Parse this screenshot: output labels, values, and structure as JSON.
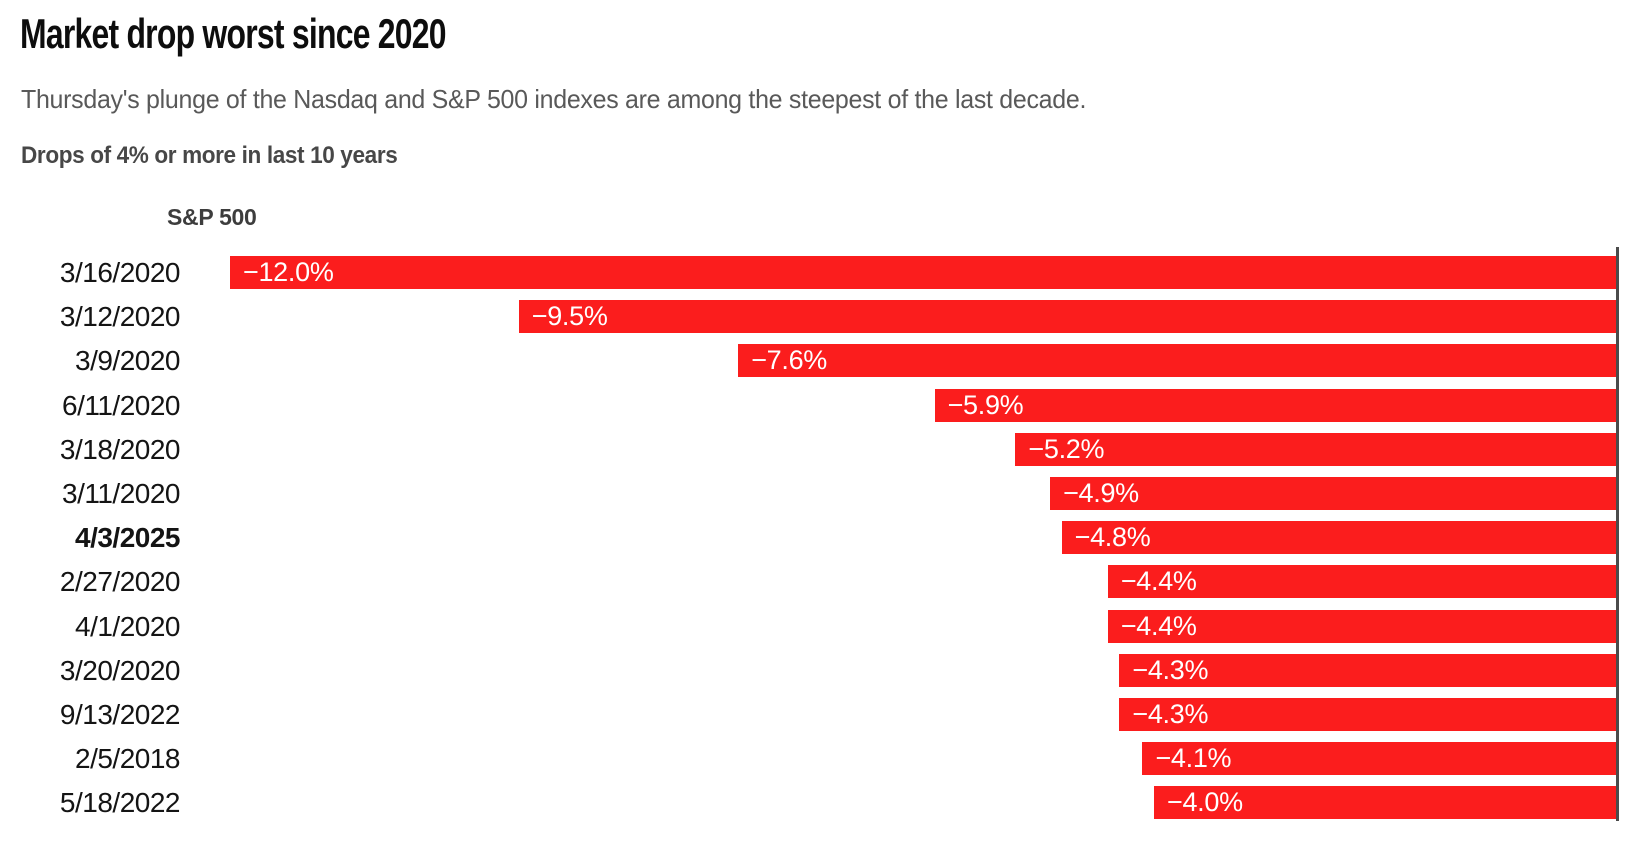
{
  "header": {
    "title": "Market drop worst since 2020",
    "subtitle": "Thursday's plunge of the Nasdaq and S&P 500 indexes are among the steepest of the last decade.",
    "section_label": "Drops of 4% or more in last 10 years"
  },
  "colors": {
    "bar_red": "#fb1d1d",
    "bar_value_text": "#ffffff",
    "axis_line": "#4b4b4b",
    "title_text": "#0d0d0d",
    "subtitle_text": "#595959",
    "date_text": "#141414"
  },
  "chart_data": {
    "type": "bar",
    "orientation": "horizontal",
    "series_label": "S&P 500",
    "title": "Drops of 4% or more in last 10 years",
    "x_max_abs": 12.0,
    "xlim": [
      -12.0,
      0
    ],
    "bars_anchored": "right",
    "grid": false,
    "legend_position": "none",
    "highlighted_category": "4/3/2025",
    "categories": [
      "3/16/2020",
      "3/12/2020",
      "3/9/2020",
      "6/11/2020",
      "3/18/2020",
      "3/11/2020",
      "4/3/2025",
      "2/27/2020",
      "4/1/2020",
      "3/20/2020",
      "9/13/2022",
      "2/5/2018",
      "5/18/2022"
    ],
    "values": [
      -12.0,
      -9.5,
      -7.6,
      -5.9,
      -5.2,
      -4.9,
      -4.8,
      -4.4,
      -4.4,
      -4.3,
      -4.3,
      -4.1,
      -4.0
    ],
    "rows": [
      {
        "date": "3/16/2020",
        "value": -12.0,
        "label": "−12.0%",
        "highlight": false
      },
      {
        "date": "3/12/2020",
        "value": -9.5,
        "label": "−9.5%",
        "highlight": false
      },
      {
        "date": "3/9/2020",
        "value": -7.6,
        "label": "−7.6%",
        "highlight": false
      },
      {
        "date": "6/11/2020",
        "value": -5.9,
        "label": "−5.9%",
        "highlight": false
      },
      {
        "date": "3/18/2020",
        "value": -5.2,
        "label": "−5.2%",
        "highlight": false
      },
      {
        "date": "3/11/2020",
        "value": -4.9,
        "label": "−4.9%",
        "highlight": false
      },
      {
        "date": "4/3/2025",
        "value": -4.8,
        "label": "−4.8%",
        "highlight": true
      },
      {
        "date": "2/27/2020",
        "value": -4.4,
        "label": "−4.4%",
        "highlight": false
      },
      {
        "date": "4/1/2020",
        "value": -4.4,
        "label": "−4.4%",
        "highlight": false
      },
      {
        "date": "3/20/2020",
        "value": -4.3,
        "label": "−4.3%",
        "highlight": false
      },
      {
        "date": "9/13/2022",
        "value": -4.3,
        "label": "−4.3%",
        "highlight": false
      },
      {
        "date": "2/5/2018",
        "value": -4.1,
        "label": "−4.1%",
        "highlight": false
      },
      {
        "date": "5/18/2022",
        "value": -4.0,
        "label": "−4.0%",
        "highlight": false
      }
    ]
  }
}
